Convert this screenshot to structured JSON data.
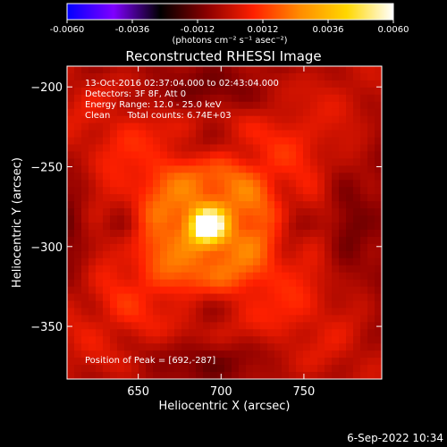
{
  "colorbar": {
    "min": -0.006,
    "max": 0.006,
    "tick_labels": [
      "-0.0060",
      "-0.0036",
      "-0.0012",
      "0.0012",
      "0.0036",
      "0.0060"
    ],
    "tick_values": [
      -0.006,
      -0.0036,
      -0.0012,
      0.0012,
      0.0036,
      0.006
    ],
    "units_label": "(photons cm⁻² s⁻¹ asec⁻²)",
    "colors": [
      "#0000ff",
      "#7f00ff",
      "#000000",
      "#8b0000",
      "#ff2000",
      "#ff8c00",
      "#ffd700",
      "#ffffff"
    ]
  },
  "chart_data": {
    "type": "heatmap",
    "title": "Reconstructed RHESSI Image",
    "xlabel": "Heliocentric X (arcsec)",
    "ylabel": "Heliocentric Y (arcsec)",
    "xlim": [
      607,
      797
    ],
    "ylim": [
      -383,
      -187
    ],
    "x_ticks": [
      650,
      700,
      750
    ],
    "y_ticks": [
      -350,
      -300,
      -250,
      -200
    ],
    "x_tick_labels": [
      "650",
      "700",
      "750"
    ],
    "y_tick_labels": [
      "−350",
      "−300",
      "−250",
      "−200"
    ],
    "peak": [
      692,
      -287
    ],
    "grid": false
  },
  "annotations": {
    "time_range": "13-Oct-2016 02:37:04.000 to 02:43:04.000",
    "detectors": "Detectors: 3F 8F, Att 0",
    "energy": "Energy Range: 12.0 - 25.0 keV",
    "clean": "Clean      Total counts: 6.74E+03",
    "peak_text": "Position of Peak = [692,-287]"
  },
  "footer_date": "6-Sep-2022 10:34"
}
